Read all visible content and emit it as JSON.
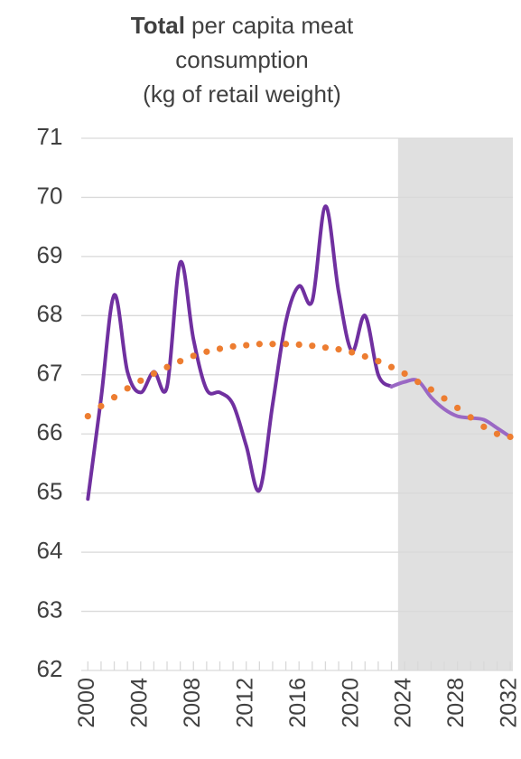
{
  "chart_data": {
    "type": "line",
    "title": {
      "bold": "Total",
      "lines": [
        "per capita meat",
        "consumption",
        "(kg of retail weight)"
      ]
    },
    "x": [
      2000,
      2001,
      2002,
      2003,
      2004,
      2005,
      2006,
      2007,
      2008,
      2009,
      2010,
      2011,
      2012,
      2013,
      2014,
      2015,
      2016,
      2017,
      2018,
      2019,
      2020,
      2021,
      2022,
      2023,
      2024,
      2025,
      2026,
      2027,
      2028,
      2029,
      2030,
      2031,
      2032
    ],
    "series": [
      {
        "color": "#7030a0",
        "values": [
          64.9,
          66.6,
          68.35,
          67.05,
          66.7,
          67.05,
          66.8,
          68.9,
          67.6,
          66.75,
          66.7,
          66.5,
          65.8,
          65.05,
          66.5,
          67.9,
          68.5,
          68.25,
          69.85,
          68.4,
          67.4,
          68.0,
          67.0,
          66.8,
          null,
          null,
          null,
          null,
          null,
          null,
          null,
          null,
          null
        ]
      },
      {
        "color": "#9a68c4",
        "values": [
          null,
          null,
          null,
          null,
          null,
          null,
          null,
          null,
          null,
          null,
          null,
          null,
          null,
          null,
          null,
          null,
          null,
          null,
          null,
          null,
          null,
          null,
          null,
          66.8,
          66.88,
          66.9,
          66.62,
          66.42,
          66.3,
          66.27,
          66.24,
          66.1,
          65.95
        ]
      },
      {
        "color": "#ed7d31",
        "dotted": true,
        "values": [
          66.3,
          66.47,
          66.62,
          66.77,
          66.9,
          67.02,
          67.13,
          67.23,
          67.32,
          67.39,
          67.44,
          67.48,
          67.5,
          67.52,
          67.52,
          67.52,
          67.51,
          67.49,
          67.46,
          67.43,
          67.38,
          67.31,
          67.23,
          67.13,
          67.02,
          66.88,
          66.75,
          66.6,
          66.44,
          66.28,
          66.12,
          66.0,
          65.95
        ]
      }
    ],
    "xlim": [
      1999.5,
      2032.2
    ],
    "xticks": [
      2000,
      2004,
      2008,
      2012,
      2016,
      2020,
      2024,
      2028,
      2032
    ],
    "ylim": [
      62,
      71
    ],
    "yticks": [
      62,
      63,
      64,
      65,
      66,
      67,
      68,
      69,
      70,
      71
    ],
    "grid": true,
    "shaded_xlim": [
      2023.5,
      2032.2
    ],
    "shade_color": "#e0e0e0"
  }
}
